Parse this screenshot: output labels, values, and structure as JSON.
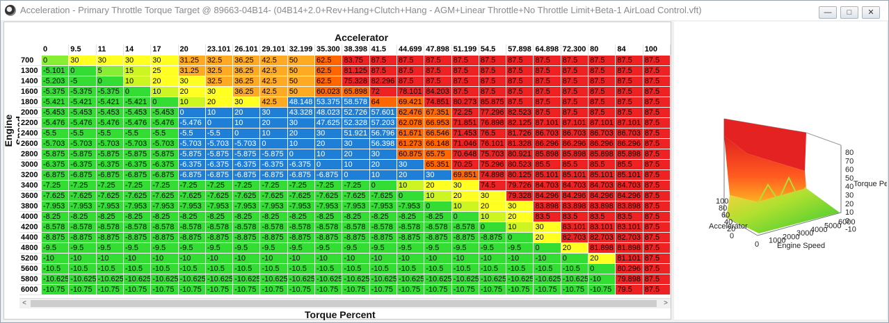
{
  "window": {
    "title": "Acceleration - Primary Throttle Torque Target @ 89663-04B14- (04B14+2.0+Rev+Hang+Clutch+Hang - AGM+Linear Throttle+No Throttle Limit+Beta-1 AirLoad Control.vft)",
    "minimize": "—",
    "maximize": "□",
    "close": "✕"
  },
  "toolbar": {
    "buttons": [
      "tools-icon",
      "info-icon",
      "document-icon",
      "document-icon"
    ]
  },
  "table": {
    "x_axis_label": "Accelerator",
    "y_axis_label": "Engine Speed",
    "value_label": "Torque Percent",
    "columns": [
      "0",
      "9.5",
      "11",
      "14",
      "17",
      "20",
      "23.101",
      "26.101",
      "29.101",
      "32.199",
      "35.300",
      "38.398",
      "41.5",
      "44.699",
      "47.898",
      "51.199",
      "54.5",
      "57.898",
      "64.898",
      "72.300",
      "80",
      "84",
      "100"
    ],
    "rows": [
      {
        "rpm": "700",
        "v": [
          "0",
          "30",
          "30",
          "30",
          "30",
          "31.25",
          "32.5",
          "36.25",
          "42.5",
          "50",
          "62.5",
          "83.75",
          "87.5",
          "87.5",
          "87.5",
          "87.5",
          "87.5",
          "87.5",
          "87.5",
          "87.5",
          "87.5",
          "87.5",
          "87.5"
        ]
      },
      {
        "rpm": "1300",
        "v": [
          "-5.101",
          "0",
          "5",
          "15",
          "25",
          "31.25",
          "32.5",
          "36.25",
          "42.5",
          "50",
          "62.5",
          "81.125",
          "87.5",
          "87.5",
          "87.5",
          "87.5",
          "87.5",
          "87.5",
          "87.5",
          "87.5",
          "87.5",
          "87.5",
          "87.5"
        ]
      },
      {
        "rpm": "1400",
        "v": [
          "-5.203",
          "-5",
          "0",
          "10",
          "20",
          "30",
          "32.5",
          "36.25",
          "42.5",
          "50",
          "62.5",
          "75.328",
          "82.296",
          "87.5",
          "87.5",
          "87.5",
          "87.5",
          "87.5",
          "87.5",
          "87.5",
          "87.5",
          "87.5",
          "87.5"
        ]
      },
      {
        "rpm": "1600",
        "v": [
          "-5.375",
          "-5.375",
          "-5.375",
          "0",
          "10",
          "20",
          "30",
          "36.25",
          "42.5",
          "50",
          "60.023",
          "65.898",
          "72",
          "78.101",
          "84.203",
          "87.5",
          "87.5",
          "87.5",
          "87.5",
          "87.5",
          "87.5",
          "87.5",
          "87.5"
        ]
      },
      {
        "rpm": "1800",
        "v": [
          "-5.421",
          "-5.421",
          "-5.421",
          "-5.421",
          "0",
          "10",
          "20",
          "30",
          "42.5",
          "48.148",
          "53.375",
          "58.578",
          "64",
          "69.421",
          "74.851",
          "80.273",
          "85.875",
          "87.5",
          "87.5",
          "87.5",
          "87.5",
          "87.5",
          "87.5"
        ]
      },
      {
        "rpm": "2000",
        "v": [
          "-5.453",
          "-5.453",
          "-5.453",
          "-5.453",
          "-5.453",
          "0",
          "10",
          "20",
          "30",
          "43.328",
          "48.023",
          "52.726",
          "57.601",
          "62.476",
          "67.351",
          "72.25",
          "77.296",
          "82.523",
          "87.5",
          "87.5",
          "87.5",
          "87.5",
          "87.5"
        ]
      },
      {
        "rpm": "2200",
        "v": [
          "-5.476",
          "-5.476",
          "-5.476",
          "-5.476",
          "-5.476",
          "-5.476",
          "0",
          "10",
          "20",
          "30",
          "47.625",
          "52.328",
          "57.203",
          "62.078",
          "66.953",
          "71.851",
          "76.898",
          "82.125",
          "87.101",
          "87.101",
          "87.101",
          "87.101",
          "87.5"
        ]
      },
      {
        "rpm": "2400",
        "v": [
          "-5.5",
          "-5.5",
          "-5.5",
          "-5.5",
          "-5.5",
          "-5.5",
          "-5.5",
          "0",
          "10",
          "20",
          "30",
          "51.921",
          "56.796",
          "61.671",
          "66.546",
          "71.453",
          "76.5",
          "81.726",
          "86.703",
          "86.703",
          "86.703",
          "86.703",
          "87.5"
        ]
      },
      {
        "rpm": "2600",
        "v": [
          "-5.703",
          "-5.703",
          "-5.703",
          "-5.703",
          "-5.703",
          "-5.703",
          "-5.703",
          "-5.703",
          "0",
          "10",
          "20",
          "30",
          "56.398",
          "61.273",
          "66.148",
          "71.046",
          "76.101",
          "81.328",
          "86.296",
          "86.296",
          "86.296",
          "86.296",
          "87.5"
        ]
      },
      {
        "rpm": "2800",
        "v": [
          "-5.875",
          "-5.875",
          "-5.875",
          "-5.875",
          "-5.875",
          "-5.875",
          "-5.875",
          "-5.875",
          "-5.875",
          "0",
          "10",
          "20",
          "30",
          "60.875",
          "65.75",
          "70.648",
          "75.703",
          "80.921",
          "85.898",
          "85.898",
          "85.898",
          "85.898",
          "87.5"
        ]
      },
      {
        "rpm": "3000",
        "v": [
          "-6.375",
          "-6.375",
          "-6.375",
          "-6.375",
          "-6.375",
          "-6.375",
          "-6.375",
          "-6.375",
          "-6.375",
          "-6.375",
          "0",
          "10",
          "20",
          "30",
          "65.351",
          "70.25",
          "75.296",
          "80.523",
          "85.5",
          "85.5",
          "85.5",
          "85.5",
          "87.5"
        ]
      },
      {
        "rpm": "3200",
        "v": [
          "-6.875",
          "-6.875",
          "-6.875",
          "-6.875",
          "-6.875",
          "-6.875",
          "-6.875",
          "-6.875",
          "-6.875",
          "-6.875",
          "-6.875",
          "0",
          "10",
          "20",
          "30",
          "69.851",
          "74.898",
          "80.125",
          "85.101",
          "85.101",
          "85.101",
          "85.101",
          "87.5"
        ]
      },
      {
        "rpm": "3400",
        "v": [
          "-7.25",
          "-7.25",
          "-7.25",
          "-7.25",
          "-7.25",
          "-7.25",
          "-7.25",
          "-7.25",
          "-7.25",
          "-7.25",
          "-7.25",
          "-7.25",
          "0",
          "10",
          "20",
          "30",
          "74.5",
          "79.726",
          "84.703",
          "84.703",
          "84.703",
          "84.703",
          "87.5"
        ]
      },
      {
        "rpm": "3600",
        "v": [
          "-7.625",
          "-7.625",
          "-7.625",
          "-7.625",
          "-7.625",
          "-7.625",
          "-7.625",
          "-7.625",
          "-7.625",
          "-7.625",
          "-7.625",
          "-7.625",
          "-7.625",
          "0",
          "10",
          "20",
          "30",
          "79.328",
          "84.296",
          "84.296",
          "84.296",
          "84.296",
          "87.5"
        ]
      },
      {
        "rpm": "3800",
        "v": [
          "-7.953",
          "-7.953",
          "-7.953",
          "-7.953",
          "-7.953",
          "-7.953",
          "-7.953",
          "-7.953",
          "-7.953",
          "-7.953",
          "-7.953",
          "-7.953",
          "-7.953",
          "-7.953",
          "0",
          "10",
          "20",
          "30",
          "83.898",
          "83.898",
          "83.898",
          "83.898",
          "87.5"
        ]
      },
      {
        "rpm": "4000",
        "v": [
          "-8.25",
          "-8.25",
          "-8.25",
          "-8.25",
          "-8.25",
          "-8.25",
          "-8.25",
          "-8.25",
          "-8.25",
          "-8.25",
          "-8.25",
          "-8.25",
          "-8.25",
          "-8.25",
          "-8.25",
          "0",
          "10",
          "20",
          "83.5",
          "83.5",
          "83.5",
          "83.5",
          "87.5"
        ]
      },
      {
        "rpm": "4200",
        "v": [
          "-8.578",
          "-8.578",
          "-8.578",
          "-8.578",
          "-8.578",
          "-8.578",
          "-8.578",
          "-8.578",
          "-8.578",
          "-8.578",
          "-8.578",
          "-8.578",
          "-8.578",
          "-8.578",
          "-8.578",
          "-8.578",
          "0",
          "10",
          "30",
          "83.101",
          "83.101",
          "83.101",
          "87.5"
        ]
      },
      {
        "rpm": "4400",
        "v": [
          "-8.875",
          "-8.875",
          "-8.875",
          "-8.875",
          "-8.875",
          "-8.875",
          "-8.875",
          "-8.875",
          "-8.875",
          "-8.875",
          "-8.875",
          "-8.875",
          "-8.875",
          "-8.875",
          "-8.875",
          "-8.875",
          "-8.875",
          "0",
          "20",
          "82.703",
          "82.703",
          "82.703",
          "87.5"
        ]
      },
      {
        "rpm": "4800",
        "v": [
          "-9.5",
          "-9.5",
          "-9.5",
          "-9.5",
          "-9.5",
          "-9.5",
          "-9.5",
          "-9.5",
          "-9.5",
          "-9.5",
          "-9.5",
          "-9.5",
          "-9.5",
          "-9.5",
          "-9.5",
          "-9.5",
          "-9.5",
          "-9.5",
          "0",
          "20",
          "81.898",
          "81.898",
          "87.5"
        ]
      },
      {
        "rpm": "5200",
        "v": [
          "-10",
          "-10",
          "-10",
          "-10",
          "-10",
          "-10",
          "-10",
          "-10",
          "-10",
          "-10",
          "-10",
          "-10",
          "-10",
          "-10",
          "-10",
          "-10",
          "-10",
          "-10",
          "-10",
          "0",
          "20",
          "81.101",
          "87.5"
        ]
      },
      {
        "rpm": "5600",
        "v": [
          "-10.5",
          "-10.5",
          "-10.5",
          "-10.5",
          "-10.5",
          "-10.5",
          "-10.5",
          "-10.5",
          "-10.5",
          "-10.5",
          "-10.5",
          "-10.5",
          "-10.5",
          "-10.5",
          "-10.5",
          "-10.5",
          "-10.5",
          "-10.5",
          "-10.5",
          "-10.5",
          "0",
          "80.296",
          "87.5"
        ]
      },
      {
        "rpm": "5800",
        "v": [
          "-10.625",
          "-10.625",
          "-10.625",
          "-10.625",
          "-10.625",
          "-10.625",
          "-10.625",
          "-10.625",
          "-10.625",
          "-10.625",
          "-10.625",
          "-10.625",
          "-10.625",
          "-10.625",
          "-10.625",
          "-10.625",
          "-10.625",
          "-10.625",
          "-10.625",
          "-10.625",
          "-10",
          "79.898",
          "87.5"
        ]
      },
      {
        "rpm": "6000",
        "v": [
          "-10.75",
          "-10.75",
          "-10.75",
          "-10.75",
          "-10.75",
          "-10.75",
          "-10.75",
          "-10.75",
          "-10.75",
          "-10.75",
          "-10.75",
          "-10.75",
          "-10.75",
          "-10.75",
          "-10.75",
          "-10.75",
          "-10.75",
          "-10.75",
          "-10.75",
          "-10.75",
          "-10.75",
          "79.5",
          "87.5"
        ]
      }
    ]
  },
  "cell_colors": {
    "green": "#33dd33",
    "light_green": "#88ee33",
    "yellow_green": "#ccf522",
    "yellow": "#ffff22",
    "orange": "#ffaa22",
    "dark_orange": "#ff6600",
    "red": "#ee2222",
    "blue": "#1f7fd6"
  },
  "surface_plot": {
    "z_axis_label": "Torque Pe",
    "x_axis_label": "Engine Speed",
    "y_axis_label": "Accelerator",
    "z_ticks": [
      "80",
      "70",
      "60",
      "50",
      "40",
      "30",
      "20",
      "10",
      "0",
      "-10"
    ],
    "x_ticks": [
      "0",
      "1000",
      "2000",
      "3000",
      "4000",
      "5000",
      "6000"
    ],
    "y_ticks": [
      "100",
      "80",
      "60",
      "40",
      "20",
      "0"
    ]
  },
  "scrollbar": {
    "left_arrow": "<",
    "right_arrow": ">"
  }
}
